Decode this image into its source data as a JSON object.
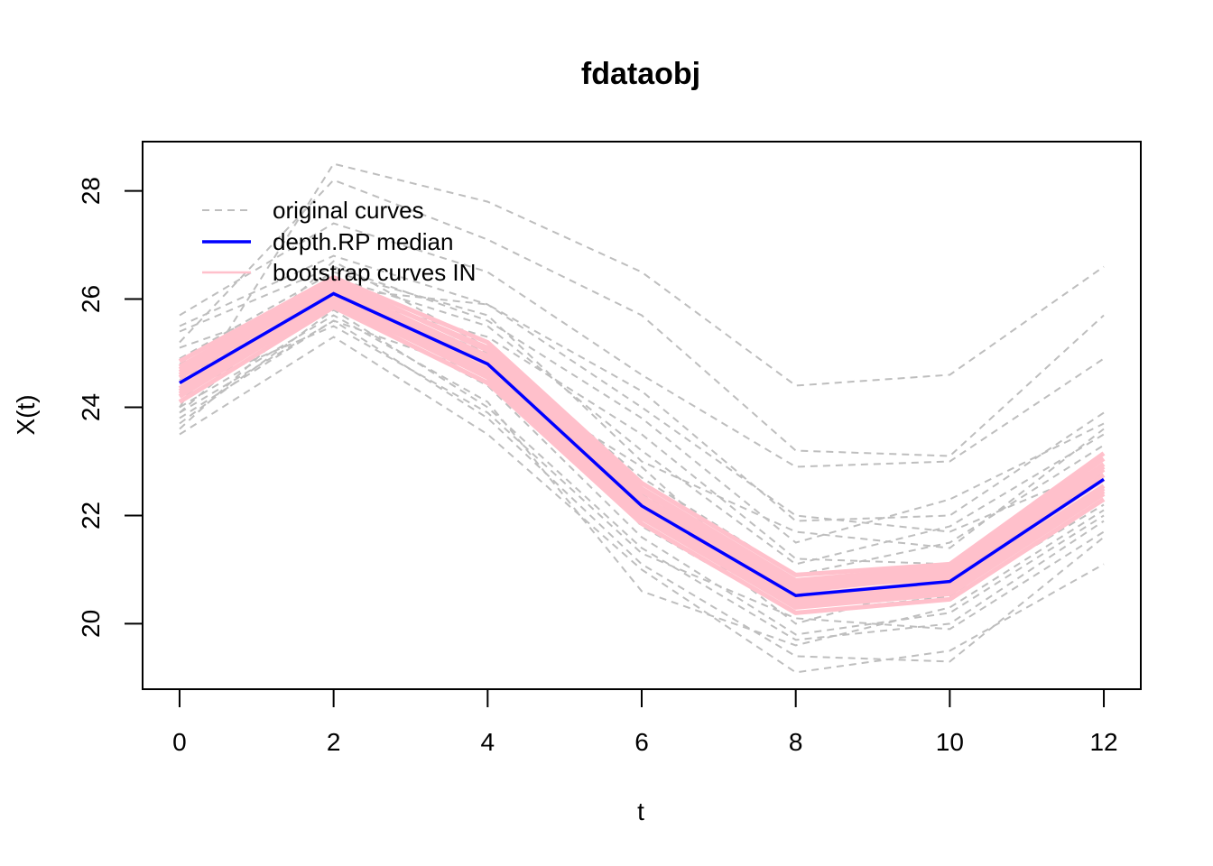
{
  "chart_data": {
    "type": "line",
    "title": "fdataobj",
    "xlabel": "t",
    "ylabel": "X(t)",
    "x": [
      0,
      2,
      4,
      6,
      8,
      10,
      12
    ],
    "xlim": [
      -0.48,
      12.48
    ],
    "ylim": [
      18.79,
      28.91
    ],
    "xticks": [
      0,
      2,
      4,
      6,
      8,
      10,
      12
    ],
    "yticks": [
      20,
      22,
      24,
      26,
      28
    ],
    "grid": false,
    "legend": {
      "position": "top-left",
      "entries": [
        {
          "label": "original curves",
          "color": "#bebebe",
          "style": "dashed"
        },
        {
          "label": "depth.RP median",
          "color": "#0000ff",
          "style": "solid"
        },
        {
          "label": "bootstrap curves IN",
          "color": "#ffc0cb",
          "style": "solid"
        }
      ]
    },
    "original_curves": {
      "color": "#bebebe",
      "style": "dashed",
      "series": [
        [
          24.0,
          28.5,
          27.8,
          26.5,
          24.4,
          24.6,
          26.6
        ],
        [
          25.2,
          28.2,
          27.1,
          25.7,
          23.2,
          23.1,
          25.7
        ],
        [
          25.7,
          27.4,
          26.5,
          24.6,
          22.9,
          23.0,
          24.9
        ],
        [
          23.6,
          26.2,
          25.9,
          24.3,
          21.9,
          22.0,
          23.9
        ],
        [
          25.4,
          26.6,
          25.6,
          23.8,
          21.5,
          22.3,
          23.7
        ],
        [
          23.9,
          26.4,
          25.5,
          23.2,
          21.1,
          21.8,
          23.5
        ],
        [
          24.1,
          26.7,
          25.1,
          22.7,
          20.9,
          21.5,
          23.3
        ],
        [
          24.6,
          26.3,
          24.9,
          22.4,
          20.7,
          21.0,
          22.8
        ],
        [
          23.5,
          25.3,
          23.5,
          21.0,
          19.1,
          19.5,
          21.1
        ],
        [
          24.2,
          25.9,
          24.4,
          21.6,
          19.8,
          20.2,
          22.0
        ],
        [
          23.8,
          25.6,
          23.8,
          21.1,
          19.4,
          19.3,
          21.6
        ],
        [
          24.8,
          26.0,
          24.7,
          22.9,
          20.3,
          20.6,
          22.4
        ],
        [
          23.7,
          25.8,
          24.0,
          21.4,
          19.7,
          20.0,
          21.9
        ],
        [
          25.1,
          26.1,
          25.3,
          23.5,
          21.2,
          21.1,
          23.1
        ],
        [
          24.3,
          25.5,
          23.9,
          21.3,
          20.1,
          19.9,
          21.7
        ],
        [
          24.9,
          26.5,
          25.7,
          23.0,
          21.7,
          21.4,
          23.6
        ],
        [
          24.0,
          25.7,
          24.1,
          20.6,
          19.6,
          20.3,
          22.1
        ],
        [
          25.5,
          26.8,
          25.9,
          24.0,
          22.0,
          21.7,
          22.9
        ],
        [
          23.9,
          25.6,
          24.6,
          22.2,
          20.0,
          20.8,
          22.5
        ],
        [
          24.5,
          26.2,
          25.0,
          21.8,
          20.2,
          20.5,
          22.2
        ]
      ]
    },
    "median_curve": {
      "name": "depth.RP median",
      "color": "#0000ff",
      "values": [
        24.45,
        26.1,
        24.8,
        22.18,
        20.52,
        20.78,
        22.67
      ]
    },
    "bootstrap_curves": {
      "color": "#ffc0cb",
      "series": [
        [
          24.45,
          26.1,
          24.8,
          22.18,
          20.52,
          20.78,
          22.67
        ],
        [
          24.7,
          26.3,
          25.1,
          22.5,
          20.8,
          21.05,
          23.05
        ],
        [
          24.2,
          25.95,
          24.55,
          21.95,
          20.3,
          20.55,
          22.4
        ],
        [
          24.85,
          26.4,
          25.2,
          22.6,
          20.9,
          21.1,
          23.15
        ],
        [
          24.1,
          25.85,
          24.45,
          21.85,
          20.2,
          20.45,
          22.3
        ],
        [
          24.6,
          26.25,
          24.95,
          22.35,
          20.7,
          20.95,
          22.9
        ],
        [
          24.3,
          26.0,
          24.65,
          22.05,
          20.4,
          20.65,
          22.5
        ],
        [
          24.55,
          26.2,
          24.9,
          22.3,
          20.6,
          20.9,
          22.85
        ],
        [
          24.35,
          26.05,
          24.7,
          22.1,
          20.45,
          20.7,
          22.55
        ],
        [
          24.75,
          26.35,
          25.05,
          22.45,
          20.75,
          21.0,
          22.95
        ],
        [
          24.25,
          25.9,
          24.6,
          22.0,
          20.35,
          20.6,
          22.45
        ],
        [
          24.65,
          26.15,
          24.85,
          22.25,
          20.65,
          20.85,
          22.75
        ]
      ]
    }
  }
}
